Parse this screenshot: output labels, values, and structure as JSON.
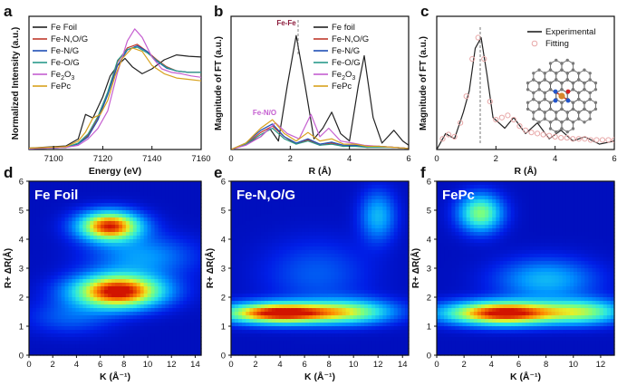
{
  "colors": {
    "black": "#222222",
    "red": "#c0392b",
    "blue": "#1f4fb5",
    "teal": "#2a9a8a",
    "violet": "#c55fd0",
    "orange": "#d8a21e",
    "fit": "#e8a8a8"
  },
  "chart_data": [
    {
      "panel": "a",
      "type": "line",
      "xlabel": "Energy (eV)",
      "ylabel": "Normalized Intensity (a.u.)",
      "xlim": [
        7090,
        7160
      ],
      "ylim": [
        0,
        1.9
      ],
      "xticks": [
        7100,
        7120,
        7140,
        7160
      ],
      "legend": [
        "Fe Foil",
        "Fe-N,O/G",
        "Fe-N/G",
        "Fe-O/G",
        "Fe2O3",
        "FePc"
      ],
      "series": [
        {
          "name": "Fe Foil",
          "color": "black",
          "x": [
            7090,
            7105,
            7110,
            7113,
            7116,
            7120,
            7123,
            7126,
            7129,
            7132,
            7136,
            7140,
            7145,
            7150,
            7155,
            7160
          ],
          "y": [
            0.02,
            0.05,
            0.15,
            0.5,
            0.45,
            0.75,
            1.05,
            1.2,
            1.3,
            1.18,
            1.08,
            1.15,
            1.28,
            1.35,
            1.33,
            1.32
          ]
        },
        {
          "name": "Fe-N,O/G",
          "color": "red",
          "x": [
            7090,
            7105,
            7110,
            7114,
            7118,
            7122,
            7126,
            7130,
            7134,
            7138,
            7142,
            7146,
            7150,
            7155,
            7160
          ],
          "y": [
            0.01,
            0.03,
            0.08,
            0.2,
            0.45,
            0.8,
            1.25,
            1.45,
            1.5,
            1.4,
            1.28,
            1.18,
            1.12,
            1.1,
            1.1
          ]
        },
        {
          "name": "Fe-N/G",
          "color": "blue",
          "x": [
            7090,
            7105,
            7110,
            7114,
            7118,
            7122,
            7126,
            7130,
            7134,
            7138,
            7142,
            7146,
            7150,
            7155,
            7160
          ],
          "y": [
            0.01,
            0.03,
            0.08,
            0.18,
            0.42,
            0.78,
            1.2,
            1.42,
            1.48,
            1.4,
            1.26,
            1.16,
            1.12,
            1.1,
            1.1
          ]
        },
        {
          "name": "Fe-O/G",
          "color": "teal",
          "x": [
            7090,
            7105,
            7110,
            7114,
            7118,
            7122,
            7126,
            7130,
            7134,
            7138,
            7142,
            7146,
            7150,
            7155,
            7160
          ],
          "y": [
            0.01,
            0.03,
            0.09,
            0.22,
            0.47,
            0.82,
            1.27,
            1.43,
            1.46,
            1.38,
            1.27,
            1.17,
            1.12,
            1.1,
            1.1
          ]
        },
        {
          "name": "Fe2O3",
          "color": "violet",
          "x": [
            7090,
            7105,
            7110,
            7114,
            7118,
            7122,
            7126,
            7130,
            7133,
            7136,
            7140,
            7144,
            7148,
            7152,
            7156,
            7160
          ],
          "y": [
            0.01,
            0.03,
            0.06,
            0.15,
            0.3,
            0.55,
            1.1,
            1.55,
            1.72,
            1.6,
            1.32,
            1.15,
            1.1,
            1.08,
            1.05,
            1.03
          ]
        },
        {
          "name": "FePc",
          "color": "orange",
          "x": [
            7090,
            7105,
            7110,
            7113,
            7116,
            7119,
            7122,
            7125,
            7128,
            7132,
            7136,
            7140,
            7145,
            7150,
            7155,
            7160
          ],
          "y": [
            0.02,
            0.04,
            0.12,
            0.25,
            0.45,
            0.5,
            0.7,
            1.05,
            1.3,
            1.45,
            1.4,
            1.2,
            1.08,
            1.02,
            1.0,
            0.98
          ]
        }
      ]
    },
    {
      "panel": "b",
      "type": "line",
      "xlabel": "R (Å)",
      "ylabel": "Magnitude of FT (a.u.)",
      "xlim": [
        0,
        6
      ],
      "ylim": [
        0,
        1.25
      ],
      "xticks": [
        0,
        2,
        4,
        6
      ],
      "annotations": [
        {
          "text": "Fe-Fe",
          "x": 2.2,
          "y": 1.14
        },
        {
          "text": "Fe-N/O",
          "x": 1.3,
          "y": 0.3
        }
      ],
      "legend": [
        "Fe foil",
        "Fe-N,O/G",
        "Fe-N/G",
        "Fe-O/G",
        "Fe2O3",
        "FePc"
      ],
      "series": [
        {
          "name": "Fe foil",
          "color": "black",
          "x": [
            0,
            0.5,
            1.0,
            1.3,
            1.6,
            1.9,
            2.2,
            2.5,
            2.8,
            3.1,
            3.4,
            3.7,
            4.0,
            4.3,
            4.5,
            4.8,
            5.1,
            5.5,
            5.8,
            6.0
          ],
          "y": [
            0.0,
            0.05,
            0.12,
            0.2,
            0.08,
            0.6,
            1.07,
            0.6,
            0.1,
            0.2,
            0.35,
            0.15,
            0.08,
            0.6,
            0.88,
            0.3,
            0.06,
            0.18,
            0.08,
            0.04
          ]
        },
        {
          "name": "Fe-N,O/G",
          "color": "red",
          "x": [
            0,
            0.5,
            1.0,
            1.4,
            1.8,
            2.2,
            2.6,
            3.0,
            3.4,
            3.8,
            4.2,
            4.6,
            5.0,
            5.5,
            6.0
          ],
          "y": [
            0.0,
            0.05,
            0.16,
            0.22,
            0.12,
            0.05,
            0.09,
            0.04,
            0.06,
            0.03,
            0.04,
            0.02,
            0.03,
            0.02,
            0.01
          ]
        },
        {
          "name": "Fe-N/G",
          "color": "blue",
          "x": [
            0,
            0.5,
            1.0,
            1.4,
            1.8,
            2.2,
            2.6,
            3.0,
            3.4,
            3.8,
            4.2,
            4.6,
            5.0,
            5.5,
            6.0
          ],
          "y": [
            0.0,
            0.06,
            0.18,
            0.24,
            0.12,
            0.06,
            0.1,
            0.05,
            0.07,
            0.04,
            0.04,
            0.03,
            0.03,
            0.02,
            0.01
          ]
        },
        {
          "name": "Fe-O/G",
          "color": "teal",
          "x": [
            0,
            0.5,
            1.0,
            1.4,
            1.8,
            2.2,
            2.6,
            3.0,
            3.4,
            3.8,
            4.2,
            4.6,
            5.0,
            5.5,
            6.0
          ],
          "y": [
            0.0,
            0.05,
            0.14,
            0.2,
            0.1,
            0.05,
            0.08,
            0.04,
            0.05,
            0.03,
            0.03,
            0.02,
            0.02,
            0.02,
            0.01
          ]
        },
        {
          "name": "Fe2O3",
          "color": "violet",
          "x": [
            0,
            0.5,
            1.0,
            1.5,
            1.9,
            2.3,
            2.7,
            3.0,
            3.3,
            3.7,
            4.1,
            4.5,
            5.0,
            5.5,
            6.0
          ],
          "y": [
            0.0,
            0.04,
            0.12,
            0.25,
            0.15,
            0.1,
            0.33,
            0.12,
            0.2,
            0.08,
            0.06,
            0.04,
            0.03,
            0.02,
            0.01
          ]
        },
        {
          "name": "FePc",
          "color": "orange",
          "x": [
            0,
            0.5,
            1.0,
            1.4,
            1.8,
            2.2,
            2.6,
            3.0,
            3.4,
            3.8,
            4.2,
            4.6,
            5.0,
            5.5,
            6.0
          ],
          "y": [
            0.0,
            0.06,
            0.2,
            0.28,
            0.15,
            0.08,
            0.16,
            0.08,
            0.1,
            0.05,
            0.05,
            0.03,
            0.03,
            0.02,
            0.01
          ]
        }
      ]
    },
    {
      "panel": "c",
      "type": "line",
      "xlabel": "R (Å)",
      "ylabel": "Magnitude of FT (a.u.)",
      "xlim": [
        0,
        6
      ],
      "ylim": [
        0,
        1.25
      ],
      "xticks": [
        0,
        2,
        4,
        6
      ],
      "legend": [
        "Experimental",
        "Fitting"
      ],
      "series": [
        {
          "name": "Experimental",
          "color": "black",
          "x": [
            0,
            0.3,
            0.6,
            0.9,
            1.1,
            1.3,
            1.5,
            1.7,
            1.9,
            2.1,
            2.3,
            2.6,
            3.0,
            3.4,
            3.8,
            4.2,
            4.6,
            5.0,
            5.5,
            6.0
          ],
          "y": [
            0.0,
            0.15,
            0.1,
            0.35,
            0.55,
            0.95,
            1.05,
            0.7,
            0.3,
            0.25,
            0.2,
            0.3,
            0.15,
            0.25,
            0.1,
            0.18,
            0.08,
            0.12,
            0.05,
            0.08
          ]
        },
        {
          "name": "Fitting",
          "color": "fit",
          "x": [
            0.2,
            0.4,
            0.6,
            0.8,
            1.0,
            1.2,
            1.4,
            1.6,
            1.8,
            2.0,
            2.2,
            2.4,
            2.6,
            2.8,
            3.0,
            3.2,
            3.4,
            3.6,
            3.8,
            4.0,
            4.2,
            4.4,
            4.6,
            4.8,
            5.0,
            5.2,
            5.4,
            5.6,
            5.8,
            6.0
          ],
          "y": [
            0.1,
            0.14,
            0.12,
            0.25,
            0.5,
            0.85,
            1.05,
            0.85,
            0.45,
            0.28,
            0.3,
            0.32,
            0.28,
            0.22,
            0.18,
            0.16,
            0.15,
            0.14,
            0.13,
            0.12,
            0.11,
            0.11,
            0.1,
            0.1,
            0.1,
            0.09,
            0.09,
            0.09,
            0.09,
            0.09
          ]
        }
      ]
    },
    {
      "panel": "d",
      "type": "heatmap",
      "title": "Fe Foil",
      "xlabel": "K (Å⁻¹)",
      "ylabel": "R+ ΔR(Å)",
      "xlim": [
        0,
        14.5
      ],
      "ylim": [
        0,
        6
      ],
      "xticks": [
        0,
        2,
        4,
        6,
        8,
        10,
        12,
        14
      ],
      "yticks": [
        0,
        1,
        2,
        3,
        4,
        5,
        6
      ],
      "peaks": [
        {
          "k": 7.5,
          "r": 2.2,
          "sk": 2.6,
          "sr": 0.4,
          "amp": 1.0
        },
        {
          "k": 6.8,
          "r": 4.45,
          "sk": 1.8,
          "sr": 0.35,
          "amp": 0.92
        },
        {
          "k": 9.5,
          "r": 3.4,
          "sk": 3.0,
          "sr": 0.5,
          "amp": 0.25
        },
        {
          "k": 3.5,
          "r": 1.3,
          "sk": 2.5,
          "sr": 0.4,
          "amp": 0.15
        }
      ]
    },
    {
      "panel": "e",
      "type": "heatmap",
      "title": "Fe-N,O/G",
      "xlabel": "K (Å⁻¹)",
      "ylabel": "R+ ΔR(Å)",
      "xlim": [
        0,
        14.5
      ],
      "ylim": [
        0,
        6
      ],
      "xticks": [
        0,
        2,
        4,
        6,
        8,
        10,
        12,
        14
      ],
      "yticks": [
        0,
        1,
        2,
        3,
        4,
        5,
        6
      ],
      "peaks": [
        {
          "k": 4.0,
          "r": 1.45,
          "sk": 3.2,
          "sr": 0.25,
          "amp": 1.0
        },
        {
          "k": 10.0,
          "r": 1.5,
          "sk": 2.5,
          "sr": 0.3,
          "amp": 0.45
        },
        {
          "k": 12.0,
          "r": 4.8,
          "sk": 1.0,
          "sr": 0.6,
          "amp": 0.3
        },
        {
          "k": 7.0,
          "r": 2.8,
          "sk": 3.0,
          "sr": 0.8,
          "amp": 0.15
        }
      ]
    },
    {
      "panel": "f",
      "type": "heatmap",
      "title": "FePc",
      "xlabel": "K (Å⁻¹)",
      "ylabel": "R+ ΔR(Å)",
      "xlim": [
        0,
        13
      ],
      "ylim": [
        0,
        6
      ],
      "xticks": [
        0,
        2,
        4,
        6,
        8,
        10,
        12
      ],
      "yticks": [
        0,
        1,
        2,
        3,
        4,
        5,
        6
      ],
      "peaks": [
        {
          "k": 5.0,
          "r": 1.45,
          "sk": 3.0,
          "sr": 0.28,
          "amp": 1.0
        },
        {
          "k": 3.2,
          "r": 4.9,
          "sk": 1.1,
          "sr": 0.45,
          "amp": 0.55
        },
        {
          "k": 8.0,
          "r": 2.6,
          "sk": 2.5,
          "sr": 0.5,
          "amp": 0.3
        },
        {
          "k": 11.0,
          "r": 1.5,
          "sk": 2.0,
          "sr": 0.3,
          "amp": 0.45
        }
      ]
    }
  ]
}
